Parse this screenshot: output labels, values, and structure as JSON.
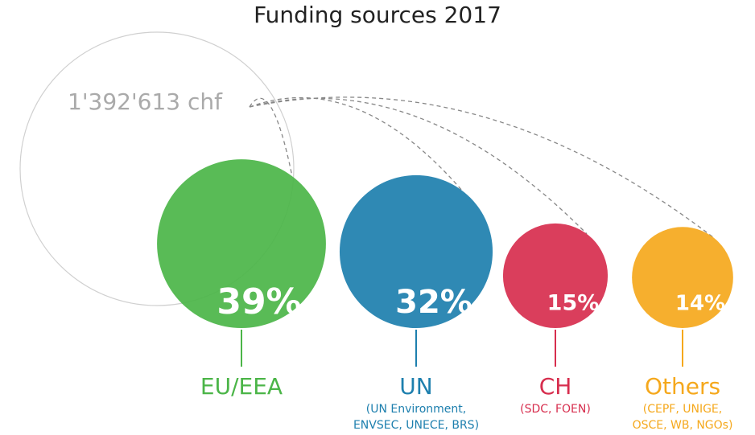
{
  "chart_data": {
    "type": "bubble",
    "title": "Funding sources 2017",
    "total": "1'392'613 chf",
    "categories": [
      "EU/EEA",
      "UN",
      "CH",
      "Others"
    ],
    "details": [
      null,
      [
        "(UN Environment,",
        "ENVSEC, UNECE, BRS)"
      ],
      [
        "(SDC, FOEN)"
      ],
      [
        "(CEPF, UNIGE,",
        "OSCE, WB, NGOs)"
      ]
    ],
    "values": [
      39,
      32,
      15,
      14
    ],
    "value_labels": [
      "39%",
      "32%",
      "15%",
      "14%"
    ],
    "colors": [
      "#4bb548",
      "#1d7fae",
      "#d72e4e",
      "#f5a81c"
    ]
  }
}
